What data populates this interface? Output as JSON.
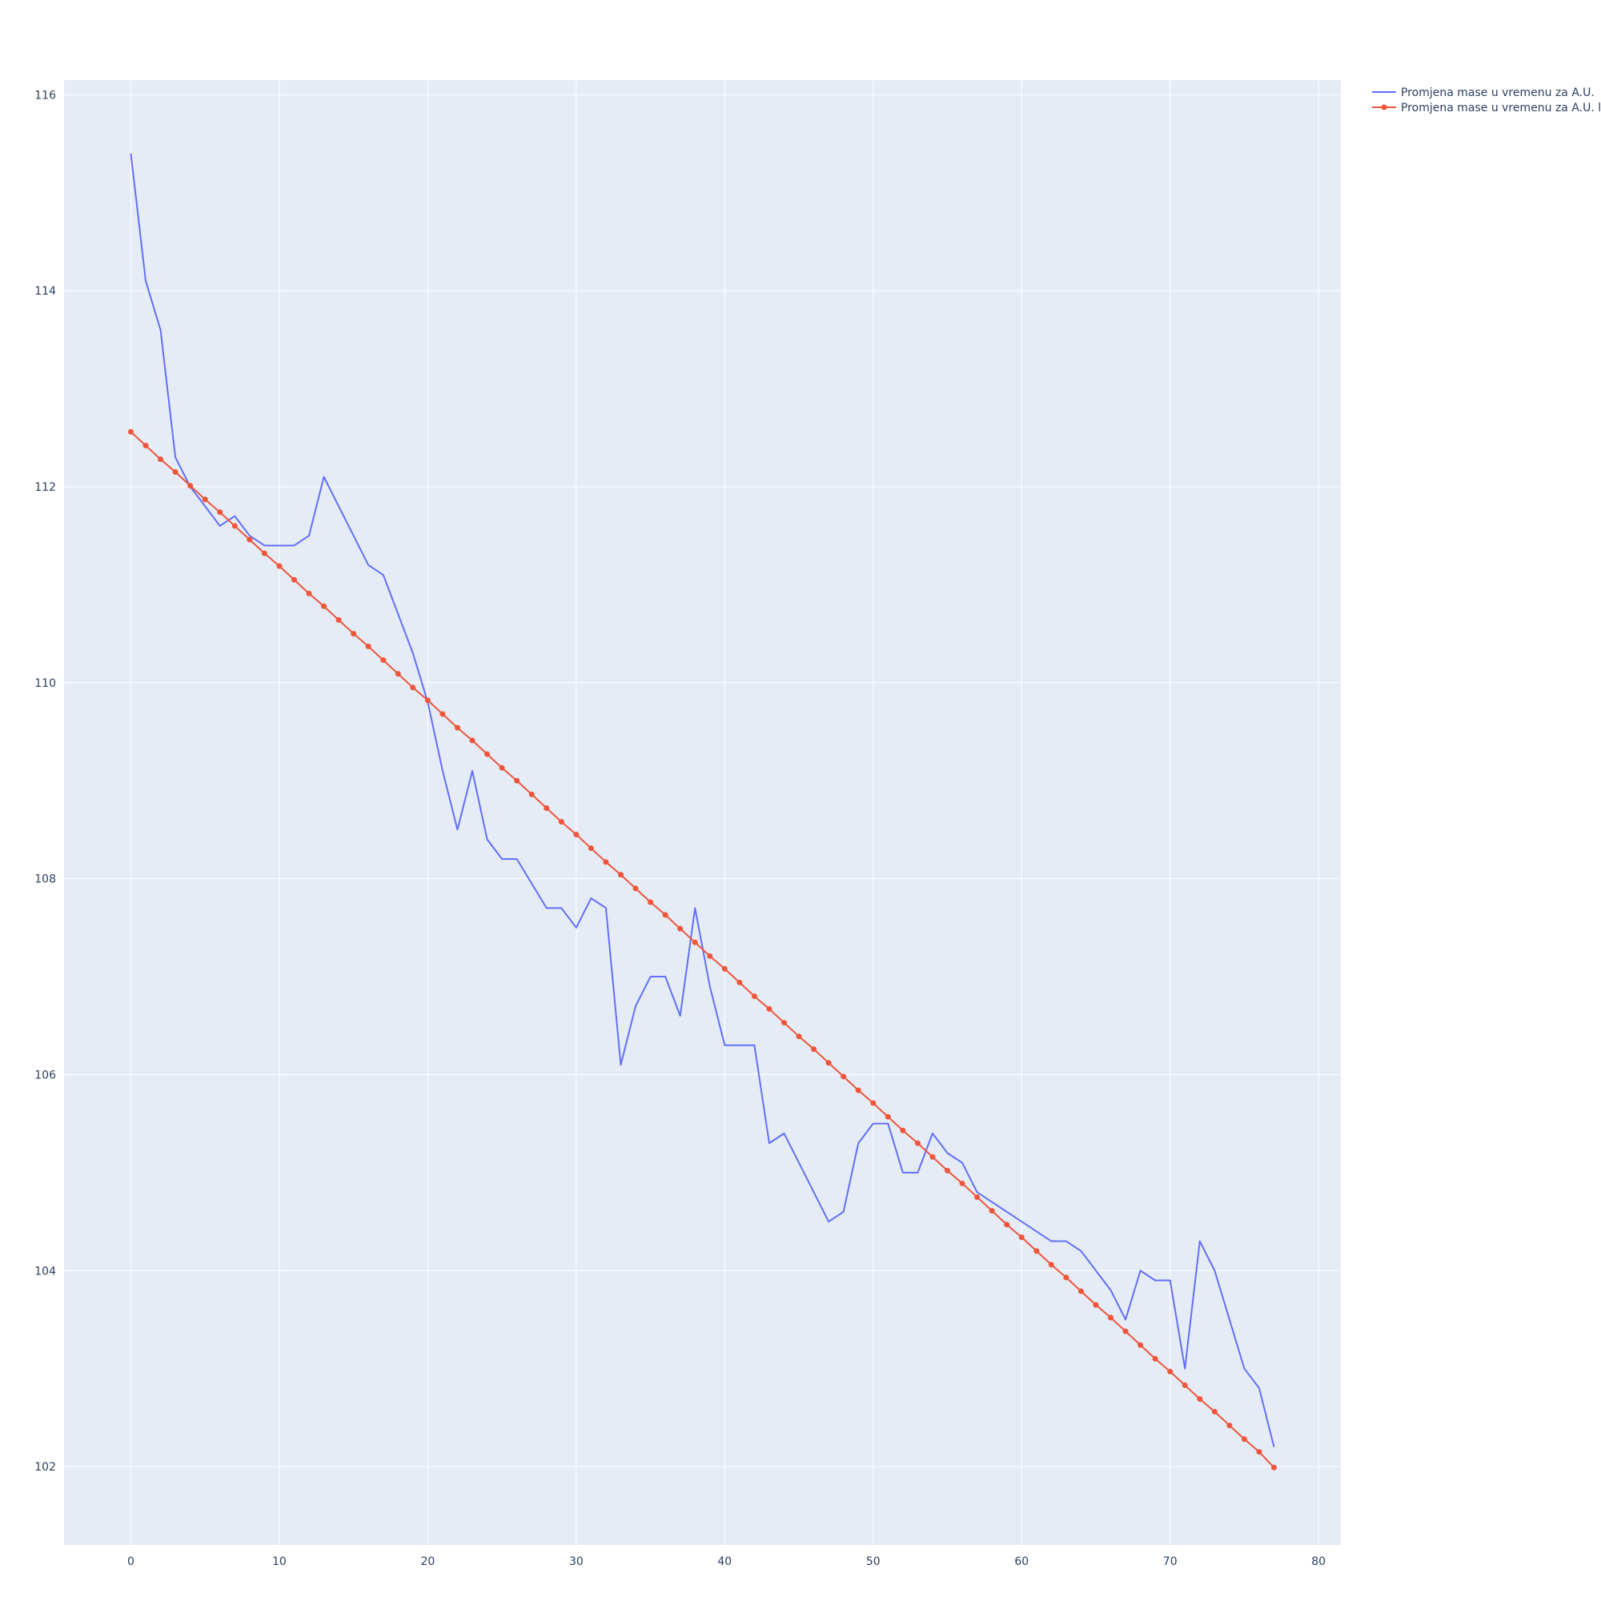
{
  "chart_data": {
    "type": "line",
    "title": "",
    "xlabel": "",
    "ylabel": "",
    "xlim": [
      -4.5,
      81.5
    ],
    "ylim": [
      101.2,
      116.15
    ],
    "x_ticks": [
      0,
      10,
      20,
      30,
      40,
      50,
      60,
      70,
      80
    ],
    "y_ticks": [
      102,
      104,
      106,
      108,
      110,
      112,
      114,
      116
    ],
    "grid": true,
    "legend_position": "top-right, outside plot",
    "plot_background": "#e5ecf6",
    "series": [
      {
        "name": "Promjena mase u vremenu za A.U.",
        "color": "#636efa",
        "mode": "lines",
        "x": [
          0,
          1,
          2,
          3,
          4,
          5,
          6,
          7,
          8,
          9,
          10,
          11,
          12,
          13,
          14,
          15,
          16,
          17,
          18,
          19,
          20,
          21,
          22,
          23,
          24,
          25,
          26,
          27,
          28,
          29,
          30,
          31,
          32,
          33,
          34,
          35,
          36,
          37,
          38,
          39,
          40,
          41,
          42,
          43,
          44,
          45,
          46,
          47,
          48,
          49,
          50,
          51,
          52,
          53,
          54,
          55,
          56,
          57,
          58,
          59,
          60,
          61,
          62,
          63,
          64,
          65,
          66,
          67,
          68,
          69,
          70,
          71,
          72,
          73,
          74,
          75,
          76,
          77
        ],
        "y": [
          115.4,
          114.1,
          113.6,
          112.3,
          112.0,
          111.8,
          111.6,
          111.7,
          111.5,
          111.4,
          111.4,
          111.4,
          111.5,
          112.1,
          111.8,
          111.5,
          111.2,
          111.1,
          110.7,
          110.3,
          109.8,
          109.1,
          108.5,
          109.1,
          108.4,
          108.2,
          108.2,
          107.95,
          107.7,
          107.7,
          107.5,
          107.8,
          107.7,
          106.1,
          106.7,
          107.0,
          107.0,
          106.6,
          107.7,
          106.9,
          106.3,
          106.3,
          106.3,
          105.3,
          105.4,
          105.1,
          104.8,
          104.5,
          104.6,
          105.3,
          105.5,
          105.5,
          105.0,
          105.0,
          105.4,
          105.2,
          105.1,
          104.8,
          104.7,
          104.6,
          104.5,
          104.4,
          104.3,
          104.3,
          104.2,
          104.0,
          103.8,
          103.5,
          104.0,
          103.9,
          103.9,
          103.0,
          104.3,
          104.0,
          103.5,
          103.0,
          102.8,
          102.2
        ]
      },
      {
        "name": "Promjena mase u vremenu za A.U. linear fit",
        "color": "#ef553b",
        "mode": "lines+markers",
        "x": [
          0,
          1,
          2,
          3,
          4,
          5,
          6,
          7,
          8,
          9,
          10,
          11,
          12,
          13,
          14,
          15,
          16,
          17,
          18,
          19,
          20,
          21,
          22,
          23,
          24,
          25,
          26,
          27,
          28,
          29,
          30,
          31,
          32,
          33,
          34,
          35,
          36,
          37,
          38,
          39,
          40,
          41,
          42,
          43,
          44,
          45,
          46,
          47,
          48,
          49,
          50,
          51,
          52,
          53,
          54,
          55,
          56,
          57,
          58,
          59,
          60,
          61,
          62,
          63,
          64,
          65,
          66,
          67,
          68,
          69,
          70,
          71,
          72,
          73,
          74,
          75,
          76,
          77
        ],
        "y": [
          112.56,
          112.42,
          112.28,
          112.15,
          112.01,
          111.87,
          111.74,
          111.6,
          111.46,
          111.32,
          111.19,
          111.05,
          110.91,
          110.78,
          110.64,
          110.5,
          110.37,
          110.23,
          110.09,
          109.95,
          109.82,
          109.68,
          109.54,
          109.41,
          109.27,
          109.13,
          109.0,
          108.86,
          108.72,
          108.58,
          108.45,
          108.31,
          108.17,
          108.04,
          107.9,
          107.76,
          107.63,
          107.49,
          107.35,
          107.21,
          107.08,
          106.94,
          106.8,
          106.67,
          106.53,
          106.39,
          106.26,
          106.12,
          105.98,
          105.84,
          105.71,
          105.57,
          105.43,
          105.3,
          105.16,
          105.02,
          104.89,
          104.75,
          104.61,
          104.47,
          104.34,
          104.2,
          104.06,
          103.93,
          103.79,
          103.65,
          103.52,
          103.38,
          103.24,
          103.1,
          102.97,
          102.83,
          102.69,
          102.56,
          102.42,
          102.28,
          102.15,
          101.99
        ]
      }
    ]
  }
}
